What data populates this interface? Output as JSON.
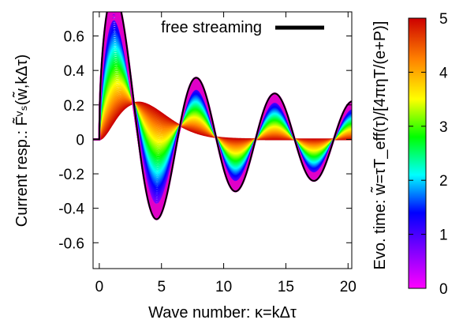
{
  "chart_data": {
    "type": "line",
    "xlabel": "Wave number: κ=kΔτ",
    "ylabel": "Current resp.: F̃ᵛₛ(w̃,kΔτ)",
    "colorbar_label": "Evo. time: w̃=τT_eff(τ)/[4πηT/(e+P)]",
    "xlim": [
      -0.5,
      20.3
    ],
    "ylim": [
      -0.75,
      0.74
    ],
    "x_ticks": [
      "0",
      "5",
      "10",
      "15",
      "20"
    ],
    "y_ticks": [
      "0.6",
      "0.4",
      "0.2",
      "0",
      "-0.2",
      "-0.4",
      "-0.6"
    ],
    "colorbar_ticks": [
      "5",
      "4",
      "3",
      "2",
      "1",
      "0"
    ],
    "colorbar_range": [
      0,
      5
    ],
    "colormap": [
      "#ff00ff",
      "#8000ff",
      "#0000ff",
      "#00ffff",
      "#00ff00",
      "#ffff00",
      "#ff8000",
      "#cc0000"
    ],
    "legend": {
      "entries": [
        {
          "label": "free streaming",
          "color": "#000000"
        }
      ],
      "position": "top-right"
    },
    "series": [
      {
        "name": "free streaming",
        "function": "sin(x)/x^0.5",
        "color": "#000000"
      }
    ],
    "family_description": "curves for evolution times 0 to 5, damping toward zero with increasing time"
  }
}
